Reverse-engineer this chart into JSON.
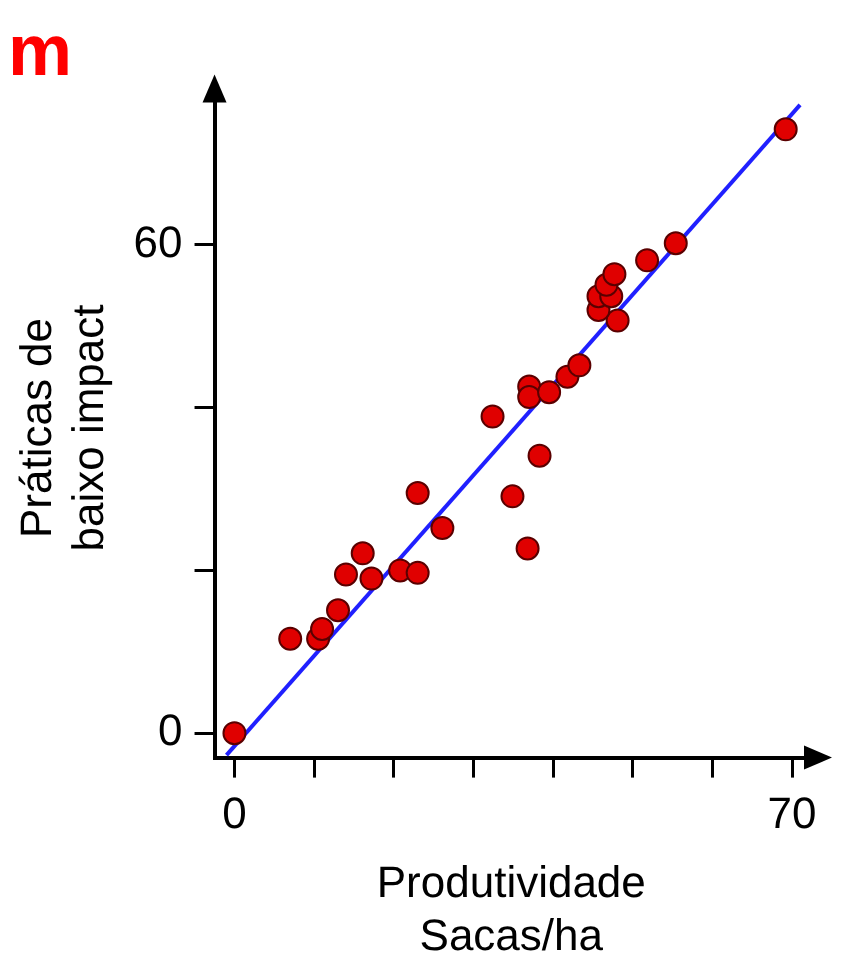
{
  "chart_data": {
    "type": "scatter",
    "title": "m",
    "xlabel": "Produtividade\nSacas/ha",
    "ylabel": "Práticas de\nbaixo impact",
    "xlim": [
      -2.5,
      72
    ],
    "ylim": [
      -3,
      78
    ],
    "xticks": [
      0,
      {
        "value": 10,
        "label": null
      },
      {
        "value": 20,
        "label": null
      },
      {
        "value": 30,
        "label": null
      },
      {
        "value": 40,
        "label": null
      },
      {
        "value": 50,
        "label": null
      },
      {
        "value": 60,
        "label": null
      },
      70
    ],
    "yticks": [
      0,
      {
        "value": 20,
        "label": null
      },
      {
        "value": 40,
        "label": null
      },
      60
    ],
    "grid": false,
    "legend": false,
    "marker": "circle",
    "series": [
      {
        "color": "#e00000",
        "x": [
          0,
          7,
          10.5,
          11,
          13,
          14,
          16.1,
          17.2,
          20.8,
          23,
          23,
          26.1,
          32.4,
          34.9,
          36.8,
          38.3,
          37,
          37,
          39.5,
          41.8,
          43.3,
          48.1,
          45.7,
          45.7,
          47.3,
          46.7,
          47.7,
          51.8,
          55.4,
          69.2
        ],
        "values": [
          0,
          11.6,
          11.6,
          12.8,
          15.1,
          19.5,
          22.1,
          19,
          20,
          19.7,
          29.5,
          25.2,
          38.9,
          29.1,
          22.7,
          34.1,
          42.6,
          41.3,
          41.9,
          43.8,
          45.2,
          50.7,
          52,
          53.7,
          53.7,
          55.1,
          56.4,
          58.1,
          60.2,
          74.2
        ]
      },
      {
        "type": "line",
        "color": "#2020ff",
        "marker": "none",
        "x": [
          -1,
          71
        ],
        "values": [
          -2.7,
          77.2
        ]
      }
    ]
  }
}
